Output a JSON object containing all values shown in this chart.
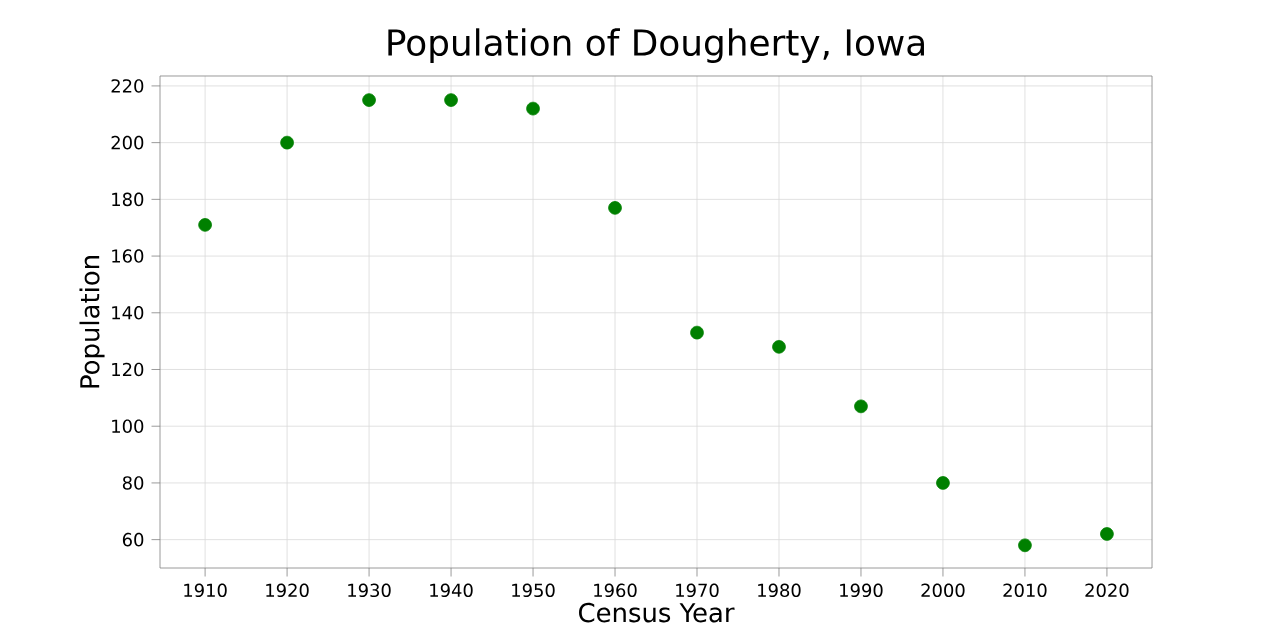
{
  "chart_data": {
    "type": "scatter",
    "title": "Population of Dougherty, Iowa",
    "xlabel": "Census Year",
    "ylabel": "Population",
    "x": [
      1910,
      1920,
      1930,
      1940,
      1950,
      1960,
      1970,
      1980,
      1990,
      2000,
      2010,
      2020
    ],
    "values": [
      171,
      200,
      215,
      215,
      212,
      177,
      133,
      128,
      107,
      80,
      58,
      62
    ],
    "color": "#008000",
    "marker": "circle",
    "grid": true,
    "xlim": [
      1904.5,
      2025.5
    ],
    "ylim": [
      50,
      223.5
    ],
    "xticks": [
      1910,
      1920,
      1930,
      1940,
      1950,
      1960,
      1970,
      1980,
      1990,
      2000,
      2010,
      2020
    ],
    "yticks": [
      60,
      80,
      100,
      120,
      140,
      160,
      180,
      200,
      220
    ]
  }
}
